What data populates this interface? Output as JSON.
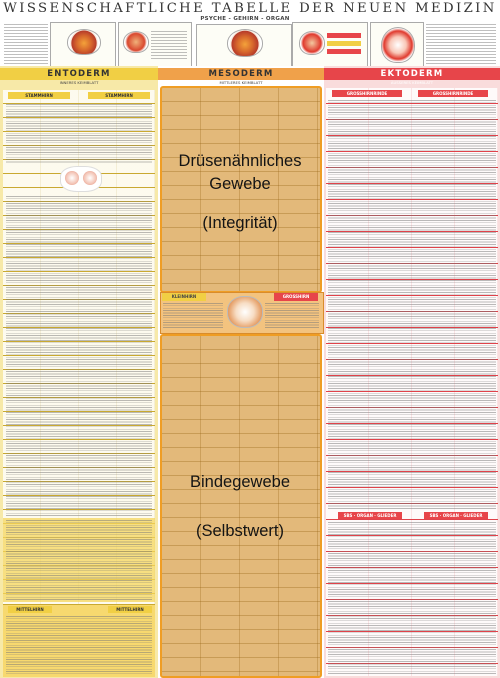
{
  "poster": {
    "title": "WISSENSCHAFTLICHE TABELLE DER NEUEN MEDIZIN",
    "subtitle": "PSYCHE - GEHIRN - ORGAN"
  },
  "columns": {
    "entoderm": {
      "label": "ENTODERM",
      "sub": "INNERES KEIMBLATT",
      "color": "#f1cf44"
    },
    "mesoderm": {
      "label": "MESODERM",
      "sub": "MITTLERES KEIMBLATT",
      "color": "#f0a14a"
    },
    "ektoderm": {
      "label": "EKTODERM",
      "sub": "ÄUSSERES KEIMBLATT",
      "color": "#e7454a"
    }
  },
  "overlay": {
    "upper": {
      "line1": "Drüsenähnliches",
      "line2": "Gewebe",
      "line3": "(Integrität)"
    },
    "lower": {
      "line1": "Bindegewebe",
      "line2": "(Selbstwert)"
    },
    "box_color": "#d89e46",
    "border_color": "#ef9d24"
  },
  "middle_band": {
    "left_label": "KLEINHIRN",
    "right_label": "GROSSHIRN"
  },
  "small_labels": {
    "ento_sub1": "STAMMHIRN",
    "ento_sub2": "STAMMHIRN",
    "ekto_sub1": "GROSSHIRNRINDE",
    "ekto_sub2": "GROSSHIRNRINDE",
    "ekto_foot1": "SBS · ORGAN · GLIEDER",
    "ekto_foot2": "SBS · ORGAN · GLIEDER",
    "ento_foot1": "MITTELHIRN",
    "ento_foot2": "MITTELHIRN"
  }
}
